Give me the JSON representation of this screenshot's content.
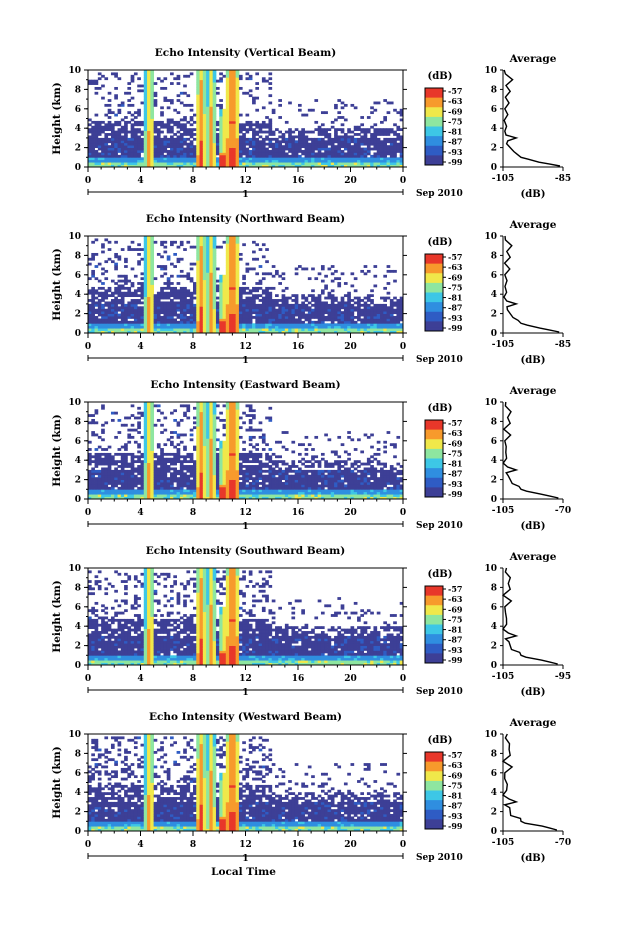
{
  "chart_data": {
    "type": "heatmap",
    "shared": {
      "xlabel": "Local Time",
      "x_ticks": [
        "0",
        "4",
        "8",
        "12",
        "16",
        "20",
        "0"
      ],
      "xlim": [
        0,
        24
      ],
      "day_label": "1",
      "month_label": "Sep 2010",
      "ylabel": "Height (km)",
      "y_ticks": [
        "0",
        "2",
        "4",
        "6",
        "8",
        "10"
      ],
      "ylim": [
        0,
        10
      ],
      "colorbar_unit": "(dB)",
      "colorbar_ticks": [
        "-57",
        "-63",
        "-69",
        "-75",
        "-81",
        "-87",
        "-93",
        "-99"
      ],
      "colorbar_colors": [
        "#3d3f96",
        "#2f5cc4",
        "#2f8ee0",
        "#3dc7e6",
        "#8ee6a0",
        "#f0e84a",
        "#f79a2c",
        "#e8372a"
      ],
      "profile_title": "Average",
      "profile_xlabel": "(dB)",
      "profile_y_ticks": [
        "0",
        "2",
        "4",
        "6",
        "8",
        "10"
      ]
    },
    "panels": [
      {
        "title": "Echo Intensity (Vertical Beam)",
        "profile_x_ticks": [
          "-105",
          "-85"
        ],
        "profile_xlim": [
          -105,
          -85
        ]
      },
      {
        "title": "Echo Intensity (Northward Beam)",
        "profile_x_ticks": [
          "-105",
          "-85"
        ],
        "profile_xlim": [
          -105,
          -85
        ]
      },
      {
        "title": "Echo Intensity (Eastward Beam)",
        "profile_x_ticks": [
          "-105",
          "-70"
        ],
        "profile_xlim": [
          -105,
          -70
        ]
      },
      {
        "title": "Echo Intensity (Southward Beam)",
        "profile_x_ticks": [
          "-105",
          "-95"
        ],
        "profile_xlim": [
          -105,
          -95
        ]
      },
      {
        "title": "Echo Intensity (Westward Beam)",
        "profile_x_ticks": [
          "-105",
          "-70"
        ],
        "profile_xlim": [
          -105,
          -70
        ]
      }
    ],
    "average_profile": {
      "height_km": [
        0.1,
        0.3,
        0.5,
        0.8,
        1.0,
        1.3,
        1.6,
        2.0,
        2.4,
        2.7,
        3.0,
        3.3,
        3.7,
        4.2,
        4.8,
        5.4,
        6.0,
        6.6,
        7.2,
        7.8,
        8.4,
        9.0,
        9.6,
        10.0
      ],
      "fraction_of_range": [
        0.95,
        0.78,
        0.6,
        0.42,
        0.3,
        0.24,
        0.18,
        0.12,
        0.06,
        0.08,
        0.22,
        0.05,
        0.03,
        0.06,
        0.02,
        0.08,
        0.03,
        0.1,
        0.04,
        0.12,
        0.05,
        0.16,
        0.04,
        0.02
      ]
    }
  }
}
